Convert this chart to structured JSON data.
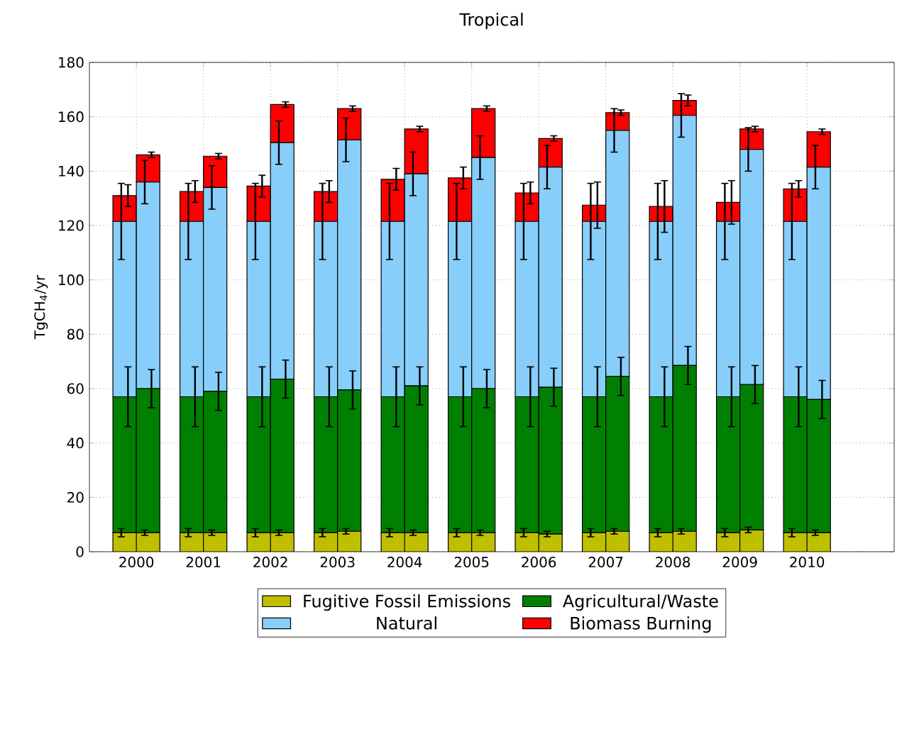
{
  "chart_data": {
    "type": "bar",
    "stacked": true,
    "title": "Tropical",
    "ylabel": "TgCH$_{4}$/yr",
    "x": [
      1999.825,
      2000.175,
      2000.825,
      2001.175,
      2001.825,
      2002.175,
      2002.825,
      2003.175,
      2003.825,
      2004.175,
      2004.825,
      2005.175,
      2005.825,
      2006.175,
      2006.825,
      2007.175,
      2007.825,
      2008.175,
      2008.825,
      2009.175,
      2009.825,
      2010.175
    ],
    "series": [
      {
        "name": "Fugitive Fossil Emissions",
        "color": "#bfbf00",
        "values": [
          7,
          7,
          7,
          7,
          7,
          7,
          7,
          7.5,
          7,
          7,
          7,
          7,
          7,
          6.5,
          7,
          7.5,
          7,
          7.5,
          7,
          8,
          7,
          7
        ],
        "errors": [
          1.5,
          1,
          1.5,
          1,
          1.5,
          1,
          1.5,
          1,
          1.5,
          1,
          1.5,
          1,
          1.5,
          1,
          1.5,
          1,
          1.5,
          1,
          1.5,
          1,
          1.5,
          1
        ]
      },
      {
        "name": "Agricultural/Waste",
        "color": "#008000",
        "values": [
          50,
          53,
          50,
          52,
          50,
          56.5,
          50,
          52,
          50,
          54,
          50,
          53,
          50,
          54,
          50,
          57,
          50,
          61,
          50,
          53.5,
          50,
          49
        ],
        "errors": [
          11,
          7,
          11,
          7,
          11,
          7,
          11,
          7,
          11,
          7,
          11,
          7,
          11,
          7,
          11,
          7,
          11,
          7,
          11,
          7,
          11,
          7
        ]
      },
      {
        "name": "Natural",
        "color": "#87cefa",
        "values": [
          64.5,
          76,
          64.5,
          75,
          64.5,
          87,
          64.5,
          92,
          64.5,
          78,
          64.5,
          85,
          64.5,
          81,
          64.5,
          90.5,
          64.5,
          92,
          64.5,
          86.5,
          64.5,
          85.5
        ],
        "errors": [
          14,
          8,
          14,
          8,
          14,
          8,
          14,
          8,
          14,
          8,
          14,
          8,
          14,
          8,
          14,
          8,
          14,
          8,
          14,
          8,
          14,
          8
        ]
      },
      {
        "name": "Biomass Burning",
        "color": "#ff0000",
        "values": [
          9.5,
          10,
          11,
          11.5,
          13,
          14,
          11,
          11.5,
          15.5,
          16.5,
          16,
          18,
          10.5,
          10.5,
          6,
          6.5,
          5.5,
          5.5,
          7,
          7.5,
          12,
          13
        ],
        "errors": [
          4,
          1,
          4,
          1,
          4,
          1,
          4,
          1,
          4,
          1,
          4,
          1,
          4,
          1,
          8.5,
          1,
          9.5,
          2,
          8,
          1,
          3,
          1
        ]
      }
    ],
    "xlim": [
      1999.3,
      2011.3
    ],
    "xticks": [
      2000,
      2001,
      2002,
      2003,
      2004,
      2005,
      2006,
      2007,
      2008,
      2009,
      2010
    ],
    "ylim": [
      0,
      180
    ],
    "yticks": [
      0,
      20,
      40,
      60,
      80,
      100,
      120,
      140,
      160,
      180
    ],
    "grid": true,
    "legend": "bottom"
  }
}
